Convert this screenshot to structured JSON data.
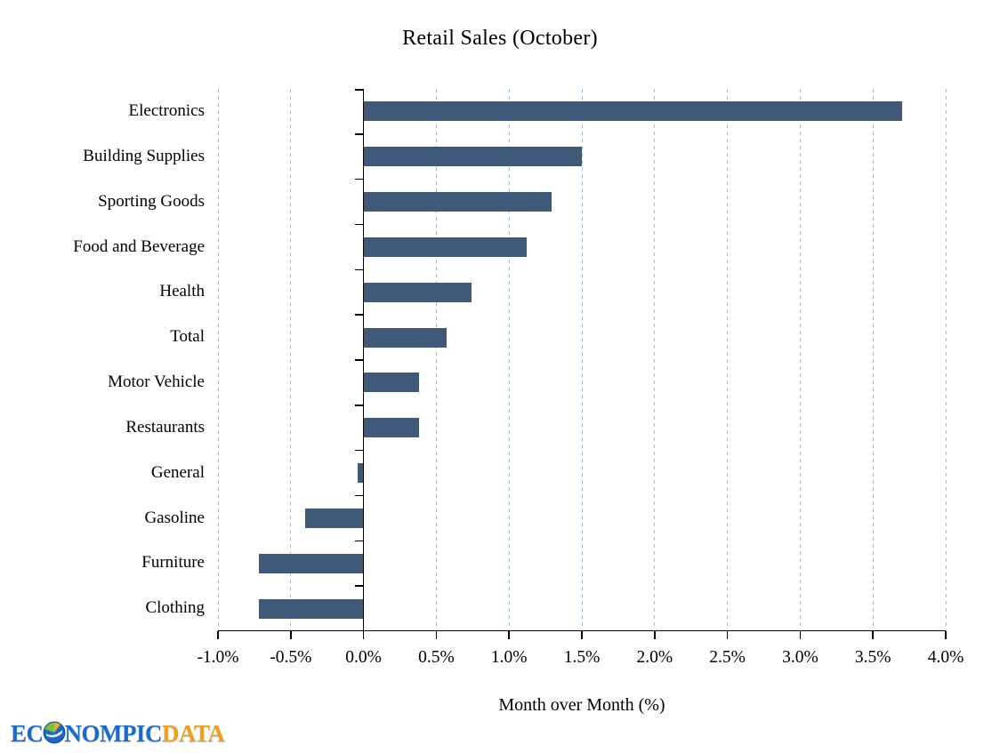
{
  "page": {
    "background": "#FFFFFF"
  },
  "chart_data": {
    "type": "bar",
    "orientation": "horizontal",
    "title": "Retail Sales (October)",
    "xlabel": "Month over Month (%)",
    "categories": [
      "Electronics",
      "Building Supplies",
      "Sporting Goods",
      "Food and Beverage",
      "Health",
      "Total",
      "Motor Vehicle",
      "Restaurants",
      "General",
      "Gasoline",
      "Furniture",
      "Clothing"
    ],
    "values": [
      3.7,
      1.5,
      1.29,
      1.12,
      0.74,
      0.57,
      0.38,
      0.38,
      -0.04,
      -0.4,
      -0.72,
      -0.72
    ],
    "xlim": [
      -1.0,
      4.0
    ],
    "xticks": [
      {
        "value": -1.0,
        "label": "-1.0%"
      },
      {
        "value": -0.5,
        "label": "-0.5%"
      },
      {
        "value": 0.0,
        "label": "0.0%"
      },
      {
        "value": 0.5,
        "label": "0.5%"
      },
      {
        "value": 1.0,
        "label": "1.0%"
      },
      {
        "value": 1.5,
        "label": "1.5%"
      },
      {
        "value": 2.0,
        "label": "2.0%"
      },
      {
        "value": 2.5,
        "label": "2.5%"
      },
      {
        "value": 3.0,
        "label": "3.0%"
      },
      {
        "value": 3.5,
        "label": "3.5%"
      },
      {
        "value": 4.0,
        "label": "4.0%"
      }
    ],
    "grid": "vertical-dashed",
    "legend_position": "none",
    "bar_color": "#3F5979",
    "grid_color": "#A9C7DE",
    "axis_color": "#000000"
  },
  "logo": {
    "part1": "EC",
    "part2": "NOMPIC",
    "part3": "DATA",
    "blue": "#1A6BCE",
    "orange": "#F0A01E"
  }
}
